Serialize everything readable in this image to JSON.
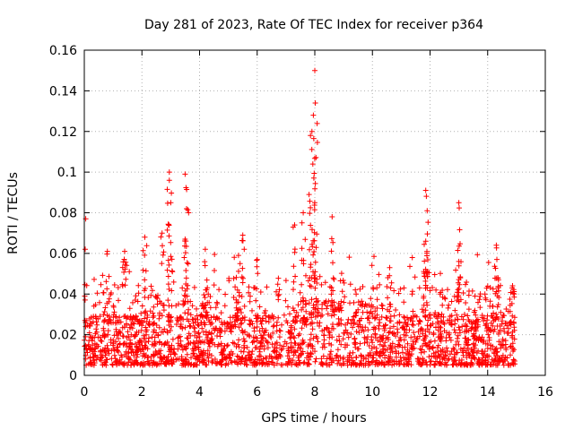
{
  "chart_data": {
    "type": "scatter",
    "title": "Day 281 of 2023, Rate Of TEC Index for receiver p364",
    "xlabel": "GPS time / hours",
    "ylabel": "ROTI / TECUs",
    "xlim": [
      0,
      16
    ],
    "ylim": [
      0,
      0.16
    ],
    "xticks": [
      0,
      2,
      4,
      6,
      8,
      10,
      12,
      14,
      16
    ],
    "xtick_labels": [
      "0",
      "2",
      "4",
      "6",
      "8",
      "10",
      "12",
      "14",
      "16"
    ],
    "yticks": [
      0,
      0.02,
      0.04,
      0.06,
      0.08,
      0.1,
      0.12,
      0.14,
      0.16
    ],
    "ytick_labels": [
      "0",
      "0.02",
      "0.04",
      "0.06",
      "0.08",
      "0.1",
      "0.12",
      "0.14",
      "0.16"
    ],
    "grid": true,
    "marker": "+",
    "color": "#ff0000",
    "x_data_range": [
      0,
      14.95
    ],
    "baseline_band": [
      0.005,
      0.03
    ],
    "peaks": [
      {
        "x": 0.05,
        "y": 0.077
      },
      {
        "x": 0.8,
        "y": 0.061
      },
      {
        "x": 1.4,
        "y": 0.061
      },
      {
        "x": 2.1,
        "y": 0.068
      },
      {
        "x": 2.7,
        "y": 0.07
      },
      {
        "x": 2.95,
        "y": 0.1
      },
      {
        "x": 2.95,
        "y": 0.096
      },
      {
        "x": 3.0,
        "y": 0.085
      },
      {
        "x": 3.5,
        "y": 0.099
      },
      {
        "x": 3.55,
        "y": 0.082
      },
      {
        "x": 3.5,
        "y": 0.067
      },
      {
        "x": 4.2,
        "y": 0.062
      },
      {
        "x": 5.5,
        "y": 0.069
      },
      {
        "x": 5.35,
        "y": 0.059
      },
      {
        "x": 6.0,
        "y": 0.057
      },
      {
        "x": 7.3,
        "y": 0.074
      },
      {
        "x": 7.6,
        "y": 0.08
      },
      {
        "x": 7.8,
        "y": 0.089
      },
      {
        "x": 7.85,
        "y": 0.118
      },
      {
        "x": 7.9,
        "y": 0.12
      },
      {
        "x": 7.95,
        "y": 0.128
      },
      {
        "x": 7.93,
        "y": 0.104
      },
      {
        "x": 8.0,
        "y": 0.15
      },
      {
        "x": 8.02,
        "y": 0.134
      },
      {
        "x": 8.6,
        "y": 0.078
      },
      {
        "x": 10.6,
        "y": 0.053
      },
      {
        "x": 11.85,
        "y": 0.091
      },
      {
        "x": 11.9,
        "y": 0.081
      },
      {
        "x": 11.85,
        "y": 0.066
      },
      {
        "x": 13.0,
        "y": 0.085
      },
      {
        "x": 13.0,
        "y": 0.056
      },
      {
        "x": 14.3,
        "y": 0.064
      },
      {
        "x": 14.35,
        "y": 0.048
      },
      {
        "x": 14.85,
        "y": 0.043
      }
    ]
  }
}
